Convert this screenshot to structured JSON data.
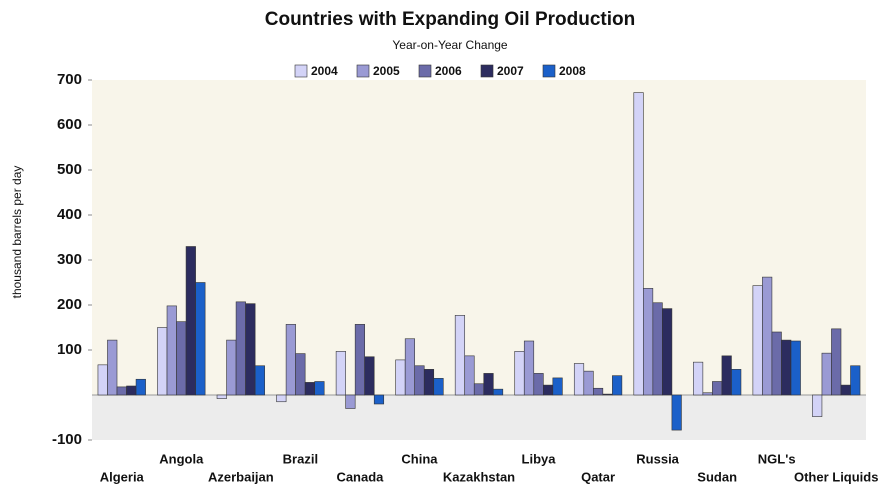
{
  "chart_data": {
    "type": "bar",
    "title": "Countries with Expanding Oil Production",
    "subtitle": "Year-on-Year Change",
    "y_label": "thousand barrels per day",
    "categories": [
      "Algeria",
      "Angola",
      "Azerbaijan",
      "Brazil",
      "Canada",
      "China",
      "Kazakhstan",
      "Libya",
      "Qatar",
      "Russia",
      "Sudan",
      "NGL's",
      "Other Liquids"
    ],
    "series": [
      {
        "name": "2004",
        "color": "#d3d3f7",
        "values": [
          67,
          150,
          -8,
          -15,
          97,
          78,
          177,
          97,
          70,
          672,
          73,
          243,
          -48
        ]
      },
      {
        "name": "2005",
        "color": "#9a9ad4",
        "values": [
          122,
          198,
          122,
          157,
          -30,
          125,
          87,
          120,
          53,
          237,
          5,
          262,
          93
        ]
      },
      {
        "name": "2006",
        "color": "#6b6ba9",
        "values": [
          18,
          163,
          207,
          92,
          157,
          65,
          25,
          48,
          15,
          205,
          30,
          140,
          147
        ]
      },
      {
        "name": "2007",
        "color": "#2c2c5f",
        "values": [
          20,
          330,
          203,
          28,
          85,
          57,
          48,
          22,
          2,
          192,
          87,
          122,
          22
        ]
      },
      {
        "name": "2008",
        "color": "#1b60c9",
        "values": [
          35,
          250,
          65,
          30,
          -20,
          37,
          13,
          38,
          43,
          -78,
          57,
          120,
          65
        ]
      }
    ],
    "ylim": [
      -100,
      700
    ],
    "yticks": [
      -100,
      100,
      200,
      300,
      400,
      500,
      600,
      700
    ],
    "grid": false,
    "legend": "top"
  }
}
